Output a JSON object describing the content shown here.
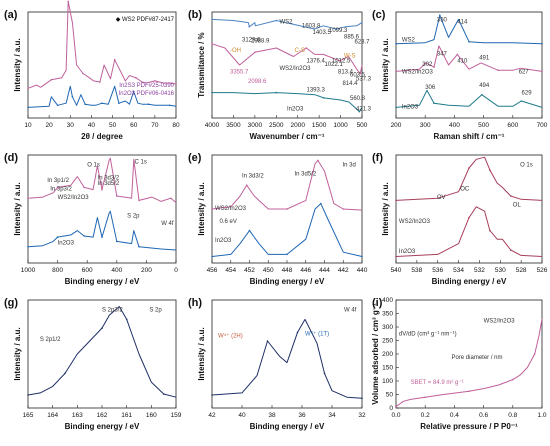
{
  "chart_data": [
    {
      "type": "line",
      "label": "(a)",
      "xlabel": "2θ / degree",
      "ylabel": "Intensity / a.u.",
      "xticks": [
        "10",
        "20",
        "30",
        "40",
        "50",
        "60",
        "70",
        "80"
      ],
      "xlim": [
        10,
        80
      ],
      "legend": [
        "◆ WS2 PDF#87-2417",
        "In2S3 PDF#25-0390",
        "In2O3 PDF#06-0416"
      ],
      "series": [
        {
          "name": "WS2/In2O3",
          "color": "#c0609a",
          "x": [
            10,
            14,
            16,
            21,
            26,
            28,
            29,
            31,
            33,
            36,
            39,
            41,
            44,
            46,
            49,
            51,
            56,
            58,
            61,
            64,
            66,
            70,
            74,
            77,
            80
          ],
          "y": [
            0.28,
            0.31,
            0.29,
            0.36,
            0.38,
            0.45,
            1.1,
            0.9,
            0.5,
            0.42,
            0.38,
            0.35,
            0.34,
            0.5,
            0.37,
            0.55,
            0.35,
            0.4,
            0.38,
            0.34,
            0.33,
            0.35,
            0.33,
            0.33,
            0.32
          ]
        },
        {
          "name": "In2O3",
          "color": "#1f66b3",
          "x": [
            10,
            20,
            21,
            24,
            28,
            30,
            31,
            33,
            35,
            37,
            40,
            42,
            45,
            48,
            51,
            53,
            56,
            58,
            60,
            62,
            64,
            67,
            70,
            74,
            77,
            80
          ],
          "y": [
            0.1,
            0.11,
            0.2,
            0.12,
            0.14,
            0.3,
            0.2,
            0.12,
            0.22,
            0.13,
            0.12,
            0.12,
            0.14,
            0.13,
            0.3,
            0.14,
            0.16,
            0.13,
            0.25,
            0.14,
            0.13,
            0.13,
            0.12,
            0.12,
            0.12,
            0.11
          ]
        }
      ]
    },
    {
      "type": "line",
      "label": "(b)",
      "xlabel": "Wavenumber / cm⁻¹",
      "ylabel": "Transmitance / %",
      "xticks": [
        "4000",
        "3500",
        "3000",
        "2500",
        "2000",
        "1500",
        "1000",
        "500"
      ],
      "xlim": [
        4000,
        500
      ],
      "annotations": [
        "WS2",
        "WS2/In2O3",
        "In2O3",
        "3129.6",
        "2988.9",
        "3355.7",
        "2098.6",
        "1603.8",
        "1403.5",
        "1022.1",
        "813.4",
        "1393.3",
        "560.8",
        "1099.3",
        "885.6",
        "623.7",
        "603.5",
        "537.3",
        "1376.4",
        "1012.5",
        "814.4",
        "421.3",
        "-OH",
        "C-S",
        "W-S"
      ],
      "series": [
        {
          "name": "WS2",
          "color": "#4a82c0",
          "x": [
            4000,
            3500,
            3150,
            3129,
            3000,
            2989,
            2500,
            1605,
            1403,
            1100,
            886,
            624,
            500
          ],
          "y": [
            0.93,
            0.92,
            0.9,
            0.86,
            0.9,
            0.87,
            0.92,
            0.84,
            0.87,
            0.84,
            0.86,
            0.87,
            0.9
          ]
        },
        {
          "name": "WS2/In2O3",
          "color": "#c0609a",
          "x": [
            4000,
            3700,
            3356,
            3000,
            2500,
            2099,
            1800,
            1604,
            1404,
            1022,
            813,
            604,
            537,
            500
          ],
          "y": [
            0.7,
            0.66,
            0.5,
            0.62,
            0.66,
            0.58,
            0.66,
            0.6,
            0.6,
            0.54,
            0.58,
            0.45,
            0.42,
            0.5
          ]
        },
        {
          "name": "In2O3",
          "color": "#1f7a8c",
          "x": [
            4000,
            3500,
            3000,
            2500,
            2000,
            1600,
            1393,
            1000,
            800,
            561,
            500
          ],
          "y": [
            0.24,
            0.24,
            0.23,
            0.24,
            0.23,
            0.22,
            0.19,
            0.17,
            0.15,
            0.06,
            0.1
          ]
        }
      ]
    },
    {
      "type": "line",
      "label": "(c)",
      "xlabel": "Raman shift / cm⁻¹",
      "ylabel": "Intensity / a.u.",
      "xticks": [
        "200",
        "300",
        "400",
        "500",
        "600",
        "700"
      ],
      "xlim": [
        200,
        700
      ],
      "annotations": [
        "WS2",
        "WS2/In2O3",
        "In2O3",
        "350",
        "414",
        "347",
        "410",
        "302",
        "491",
        "627",
        "306",
        "494",
        "629"
      ],
      "series": [
        {
          "name": "WS2",
          "color": "#1f66b3",
          "x": [
            200,
            300,
            330,
            350,
            380,
            414,
            450,
            500,
            600,
            700
          ],
          "y": [
            0.7,
            0.71,
            0.74,
            0.97,
            0.76,
            0.93,
            0.72,
            0.71,
            0.71,
            0.7
          ]
        },
        {
          "name": "WS2/In2O3",
          "color": "#c0609a",
          "x": [
            200,
            280,
            302,
            330,
            347,
            380,
            410,
            450,
            491,
            550,
            600,
            627,
            700
          ],
          "y": [
            0.44,
            0.46,
            0.52,
            0.48,
            0.68,
            0.5,
            0.6,
            0.46,
            0.52,
            0.45,
            0.45,
            0.47,
            0.44
          ]
        },
        {
          "name": "In2O3",
          "color": "#1f7a8c",
          "x": [
            200,
            280,
            306,
            330,
            380,
            450,
            494,
            550,
            600,
            629,
            700
          ],
          "y": [
            0.1,
            0.12,
            0.26,
            0.14,
            0.12,
            0.11,
            0.22,
            0.11,
            0.11,
            0.16,
            0.1
          ]
        }
      ]
    },
    {
      "type": "line",
      "label": "(d)",
      "xlabel": "Binding energy / eV",
      "ylabel": "Intensity / a.u.",
      "xticks": [
        "1000",
        "800",
        "600",
        "400",
        "200",
        "0"
      ],
      "xlim": [
        1000,
        0
      ],
      "annotations": [
        "WS2/In2O3",
        "In2O3",
        "In 3p1/2",
        "In 3p3/2",
        "O 1s",
        "In 3d3/2",
        "In 3d5/2",
        "C 1s",
        "S 2p",
        "W 4f"
      ],
      "series": [
        {
          "name": "WS2/In2O3",
          "color": "#c0609a",
          "x": [
            1000,
            900,
            830,
            800,
            710,
            666,
            620,
            560,
            531,
            500,
            452,
            444,
            400,
            300,
            285,
            250,
            163,
            100,
            35,
            0
          ],
          "y": [
            0.6,
            0.61,
            0.65,
            0.7,
            0.72,
            0.8,
            0.7,
            0.68,
            0.9,
            0.68,
            0.95,
            0.97,
            0.62,
            0.6,
            0.96,
            0.58,
            0.61,
            0.57,
            0.6,
            0.56
          ]
        },
        {
          "name": "In2O3",
          "color": "#1f66b3",
          "x": [
            1000,
            900,
            830,
            800,
            710,
            666,
            620,
            560,
            531,
            500,
            452,
            444,
            400,
            300,
            285,
            250,
            100,
            0
          ],
          "y": [
            0.15,
            0.16,
            0.2,
            0.24,
            0.26,
            0.3,
            0.25,
            0.24,
            0.42,
            0.24,
            0.46,
            0.48,
            0.2,
            0.18,
            0.3,
            0.15,
            0.13,
            0.12
          ]
        }
      ]
    },
    {
      "type": "line",
      "label": "(e)",
      "xlabel": "Binding energy / eV",
      "ylabel": "Intensity / a.u.",
      "xticks": [
        "456",
        "454",
        "452",
        "450",
        "448",
        "446",
        "444",
        "442",
        "440"
      ],
      "xlim": [
        456,
        440
      ],
      "annotations": [
        "In 3d",
        "In 3d3/2",
        "In 3d5/2",
        "WS2/In2O3",
        "In2O3",
        "0.6 eV"
      ],
      "series": [
        {
          "name": "WS2/In2O3",
          "color": "#c0609a",
          "x": [
            456,
            454,
            453,
            452.3,
            451.5,
            450,
            448,
            446,
            445,
            444.7,
            444,
            443,
            442,
            440
          ],
          "y": [
            0.5,
            0.52,
            0.62,
            0.72,
            0.62,
            0.5,
            0.5,
            0.58,
            0.92,
            0.95,
            0.85,
            0.55,
            0.5,
            0.49
          ]
        },
        {
          "name": "In2O3",
          "color": "#1f66b3",
          "x": [
            456,
            454,
            453,
            452,
            451,
            450,
            448,
            446,
            445,
            444.4,
            443.5,
            442,
            440
          ],
          "y": [
            0.06,
            0.08,
            0.18,
            0.3,
            0.18,
            0.08,
            0.08,
            0.22,
            0.5,
            0.55,
            0.38,
            0.1,
            0.06
          ]
        }
      ]
    },
    {
      "type": "line",
      "label": "(f)",
      "xlabel": "Binding energy / eV",
      "ylabel": "Intensity / a.u.",
      "xticks": [
        "540",
        "538",
        "536",
        "534",
        "532",
        "530",
        "528",
        "526"
      ],
      "xlim": [
        540,
        526
      ],
      "annotations": [
        "O 1s",
        "WS2/In2O3",
        "In2O3",
        "OV",
        "OC",
        "OL"
      ],
      "series": [
        {
          "name": "WS2/In2O3",
          "color": "#a83e5a",
          "x": [
            540,
            536,
            534,
            533,
            532.3,
            531.5,
            531,
            530.3,
            529.8,
            529,
            528,
            526
          ],
          "y": [
            0.58,
            0.6,
            0.66,
            0.88,
            0.96,
            0.98,
            0.86,
            0.74,
            0.7,
            0.62,
            0.59,
            0.58
          ]
        },
        {
          "name": "In2O3",
          "color": "#a83e5a",
          "x": [
            540,
            536,
            534,
            533,
            532.3,
            531.5,
            531,
            530.3,
            529.8,
            529,
            528,
            526
          ],
          "y": [
            0.06,
            0.08,
            0.18,
            0.42,
            0.52,
            0.48,
            0.3,
            0.22,
            0.22,
            0.12,
            0.07,
            0.06
          ]
        }
      ]
    },
    {
      "type": "line",
      "label": "(g)",
      "xlabel": "Binding energy / eV",
      "ylabel": "Intensity / a.u.",
      "xticks": [
        "165",
        "164",
        "163",
        "162",
        "161",
        "160",
        "159"
      ],
      "xlim": [
        165,
        159
      ],
      "annotations": [
        "S 2p",
        "S 2p1/2",
        "S 2p3/2"
      ],
      "series": [
        {
          "name": "S 2p",
          "color": "#1f2f66",
          "x": [
            165,
            164.5,
            164,
            163.5,
            163,
            162.5,
            162,
            161.7,
            161.3,
            161,
            160.5,
            160,
            159.5,
            159
          ],
          "y": [
            0.12,
            0.14,
            0.2,
            0.32,
            0.5,
            0.62,
            0.74,
            0.86,
            0.94,
            0.82,
            0.5,
            0.24,
            0.13,
            0.1
          ]
        }
      ]
    },
    {
      "type": "line",
      "label": "(h)",
      "xlabel": "Binding energy / eV",
      "ylabel": "Intensity / a.u.",
      "xticks": [
        "42",
        "40",
        "38",
        "36",
        "34",
        "32"
      ],
      "xlim": [
        42,
        32
      ],
      "annotations": [
        "W 4f",
        "W⁴⁺ (2H)",
        "W⁴⁺ (1T)"
      ],
      "series": [
        {
          "name": "W 4f",
          "color": "#1f2f66",
          "x": [
            42,
            40,
            39,
            38.3,
            37.5,
            37,
            36.3,
            35.8,
            35,
            34.5,
            34,
            33,
            32
          ],
          "y": [
            0.12,
            0.14,
            0.3,
            0.62,
            0.48,
            0.42,
            0.7,
            0.82,
            0.6,
            0.32,
            0.16,
            0.1,
            0.09
          ]
        }
      ]
    },
    {
      "type": "line",
      "label": "(i)",
      "xlabel": "Relative pressure / P P0⁻¹",
      "ylabel": "Volume adsorbed / cm³ g⁻¹",
      "xticks": [
        "0.0",
        "0.2",
        "0.4",
        "0.6",
        "0.8",
        "1.0"
      ],
      "yticks": [
        "0",
        "50",
        "100",
        "150",
        "200",
        "250",
        "300",
        "350",
        "400"
      ],
      "xlim": [
        0,
        1
      ],
      "ylim": [
        0,
        400
      ],
      "annotations": [
        "SBET = 84.9 m² g⁻¹",
        "WS2/In2O3",
        "Pore diameter / nm",
        "dV/dD (cm³ g⁻¹ nm⁻¹)"
      ],
      "series": [
        {
          "name": "WS2/In2O3",
          "color": "#c0609a",
          "x": [
            0,
            0.05,
            0.1,
            0.2,
            0.3,
            0.4,
            0.5,
            0.6,
            0.7,
            0.8,
            0.85,
            0.9,
            0.95,
            0.98,
            1.0
          ],
          "y": [
            5,
            25,
            32,
            40,
            48,
            55,
            62,
            72,
            85,
            105,
            122,
            150,
            200,
            270,
            330
          ]
        }
      ]
    }
  ]
}
